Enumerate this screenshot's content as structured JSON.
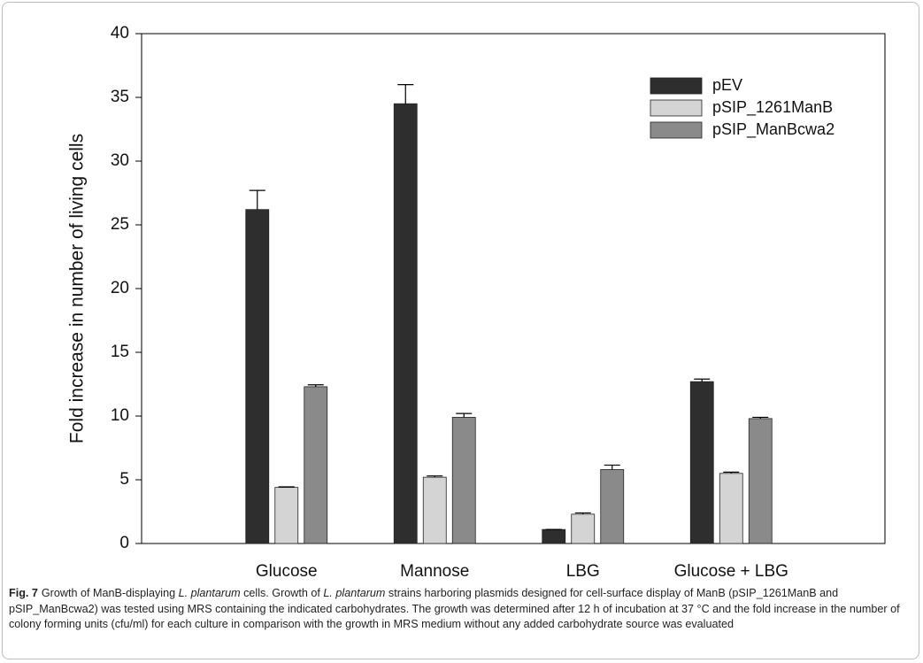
{
  "chart_data": {
    "type": "bar",
    "y_label": "Fold increase in number of living cells",
    "categories": [
      "Glucose",
      "Mannose",
      "LBG",
      "Glucose + LBG"
    ],
    "series": [
      {
        "name": "pEV",
        "color": "#2e2e2e",
        "values": [
          26.2,
          34.5,
          1.1,
          12.7
        ],
        "errors": [
          1.5,
          1.5,
          0,
          0.2
        ]
      },
      {
        "name": "pSIP_1261ManB",
        "color": "#d4d4d4",
        "values": [
          4.4,
          5.2,
          2.3,
          5.5
        ],
        "errors": [
          0.05,
          0.1,
          0.1,
          0.1
        ]
      },
      {
        "name": "pSIP_ManBcwa2",
        "color": "#8a8a8a",
        "values": [
          12.3,
          9.9,
          5.8,
          9.8
        ],
        "errors": [
          0.15,
          0.3,
          0.35,
          0.1
        ]
      }
    ],
    "ylim": [
      0,
      40
    ],
    "yticks": [
      0,
      5,
      10,
      15,
      20,
      25,
      30,
      35,
      40
    ],
    "legend": "upper right",
    "grid": false
  },
  "caption": {
    "label": "Fig. 7",
    "parts": [
      "Growth of ManB-displaying ",
      "L. plantarum",
      " cells. Growth of ",
      "L. plantarum",
      " strains harboring plasmids designed for cell-surface display of ManB (pSIP_1261ManB and pSIP_ManBcwa2) was tested using MRS containing the indicated carbohydrates. The growth was determined after 12 h of incubation at 37 °C and the fold increase in the number of colony forming units (cfu/ml) for each culture in comparison with the growth in MRS medium without any added carbohydrate source was evaluated"
    ]
  }
}
